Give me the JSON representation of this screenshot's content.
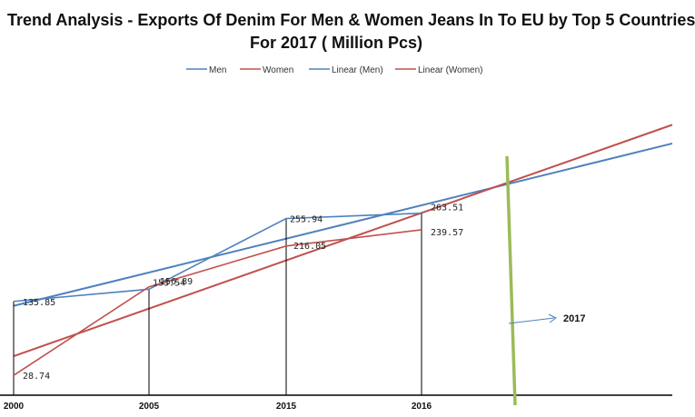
{
  "chart_data": {
    "type": "line",
    "title_line1": "Trend Analysis - Exports Of Denim For Men & Women Jeans In To EU by Top 5 Countries",
    "title_line2": "For 2017  ( Million Pcs)",
    "categories": [
      "2000",
      "2005",
      "2015",
      "2016"
    ],
    "series": [
      {
        "name": "Men",
        "values": [
          135.85,
          153.54,
          255.94,
          263.51
        ],
        "color": "#4f81bd"
      },
      {
        "name": "Women",
        "values": [
          28.74,
          156.89,
          216.05,
          239.57
        ],
        "color": "#c0504d"
      }
    ],
    "trendlines": [
      {
        "name": "Linear (Men)",
        "of": "Men",
        "type": "linear",
        "color": "#4f81bd"
      },
      {
        "name": "Linear (Women)",
        "of": "Women",
        "type": "linear",
        "color": "#c0504d"
      }
    ],
    "annotation": {
      "label": "2017",
      "marker_color": "#9bbb59"
    },
    "legend_position": "top",
    "grid": false
  }
}
